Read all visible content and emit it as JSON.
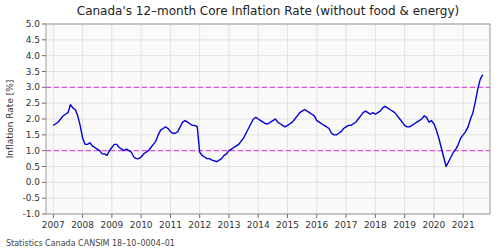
{
  "chart_data": {
    "type": "line",
    "title": "Canada's 12–month Core Inflation Rate (without food & energy)",
    "y_label": "Inflation Rate [%]",
    "annotations": [
      "Statistics Canada CANSIM 18–10–0004–01"
    ],
    "categories": [
      "2007",
      null,
      null,
      null,
      null,
      null,
      null,
      null,
      null,
      null,
      null,
      null,
      "2008",
      null,
      null,
      null,
      null,
      null,
      null,
      null,
      null,
      null,
      null,
      null,
      "2009",
      null,
      null,
      null,
      null,
      null,
      null,
      null,
      null,
      null,
      null,
      null,
      "2010",
      null,
      null,
      null,
      null,
      null,
      null,
      null,
      null,
      null,
      null,
      null,
      "2011",
      null,
      null,
      null,
      null,
      null,
      null,
      null,
      null,
      null,
      null,
      null,
      "2012",
      null,
      null,
      null,
      null,
      null,
      null,
      null,
      null,
      null,
      null,
      null,
      "2013",
      null,
      null,
      null,
      null,
      null,
      null,
      null,
      null,
      null,
      null,
      null,
      "2014",
      null,
      null,
      null,
      null,
      null,
      null,
      null,
      null,
      null,
      null,
      null,
      "2015",
      null,
      null,
      null,
      null,
      null,
      null,
      null,
      null,
      null,
      null,
      null,
      "2016",
      null,
      null,
      null,
      null,
      null,
      null,
      null,
      null,
      null,
      null,
      null,
      "2017",
      null,
      null,
      null,
      null,
      null,
      null,
      null,
      null,
      null,
      null,
      null,
      "2018",
      null,
      null,
      null,
      null,
      null,
      null,
      null,
      null,
      null,
      null,
      null,
      "2019",
      null,
      null,
      null,
      null,
      null,
      null,
      null,
      null,
      null,
      null,
      null,
      "2020",
      null,
      null,
      null,
      null,
      null,
      null,
      null,
      null,
      null,
      null,
      null,
      "2021",
      null,
      null,
      null,
      null,
      null,
      null,
      null,
      null
    ],
    "values": [
      1.8,
      1.85,
      1.9,
      2.0,
      2.1,
      2.15,
      2.2,
      2.45,
      2.35,
      2.3,
      2.1,
      1.8,
      1.4,
      1.2,
      1.2,
      1.25,
      1.15,
      1.1,
      1.05,
      1.0,
      0.9,
      0.9,
      0.85,
      1.0,
      1.1,
      1.2,
      1.2,
      1.1,
      1.05,
      1.0,
      1.05,
      1.0,
      0.95,
      0.8,
      0.75,
      0.75,
      0.8,
      0.9,
      0.95,
      1.0,
      1.1,
      1.2,
      1.3,
      1.5,
      1.65,
      1.7,
      1.75,
      1.7,
      1.6,
      1.55,
      1.55,
      1.6,
      1.75,
      1.9,
      1.95,
      1.9,
      1.85,
      1.8,
      1.8,
      1.75,
      0.95,
      0.85,
      0.8,
      0.75,
      0.75,
      0.7,
      0.68,
      0.65,
      0.7,
      0.75,
      0.85,
      0.9,
      1.0,
      1.05,
      1.1,
      1.15,
      1.2,
      1.3,
      1.4,
      1.55,
      1.7,
      1.85,
      2.0,
      2.05,
      2.0,
      1.95,
      1.9,
      1.85,
      1.85,
      1.9,
      1.95,
      2.0,
      1.9,
      1.85,
      1.8,
      1.75,
      1.8,
      1.85,
      1.9,
      2.0,
      2.1,
      2.2,
      2.25,
      2.3,
      2.25,
      2.2,
      2.15,
      2.1,
      1.95,
      1.9,
      1.85,
      1.8,
      1.75,
      1.7,
      1.55,
      1.5,
      1.5,
      1.55,
      1.6,
      1.7,
      1.75,
      1.8,
      1.8,
      1.85,
      1.9,
      2.0,
      2.1,
      2.2,
      2.25,
      2.2,
      2.15,
      2.2,
      2.15,
      2.2,
      2.25,
      2.35,
      2.4,
      2.35,
      2.3,
      2.25,
      2.2,
      2.1,
      2.0,
      1.9,
      1.8,
      1.75,
      1.75,
      1.8,
      1.85,
      1.9,
      1.95,
      2.0,
      2.1,
      2.05,
      1.9,
      1.95,
      1.85,
      1.65,
      1.4,
      1.1,
      0.8,
      0.5,
      0.65,
      0.8,
      0.95,
      1.05,
      1.2,
      1.4,
      1.5,
      1.6,
      1.75,
      2.0,
      2.2,
      2.55,
      2.95,
      3.25,
      3.4
    ],
    "color": "#0000dd",
    "hlines": [
      {
        "value": 3.0,
        "color": "#dd55dd",
        "line_style": "dashed"
      },
      {
        "value": 1.0,
        "color": "#dd55dd",
        "line_style": "dashed"
      }
    ],
    "ylim": [
      -1.0,
      5.0
    ],
    "yticks": [
      {
        "value": -1.0,
        "label": "-1.0"
      },
      -0.5,
      {
        "value": 0.0,
        "label": "0.0"
      },
      0.5,
      {
        "value": 1.0,
        "label": "1.0"
      },
      1.5,
      {
        "value": 2.0,
        "label": "2.0"
      },
      2.5,
      {
        "value": 3.0,
        "label": "3.0"
      },
      3.5,
      {
        "value": 4.0,
        "label": "4.0"
      },
      4.5,
      {
        "value": 5.0,
        "label": "5.0"
      }
    ],
    "grid": true
  }
}
